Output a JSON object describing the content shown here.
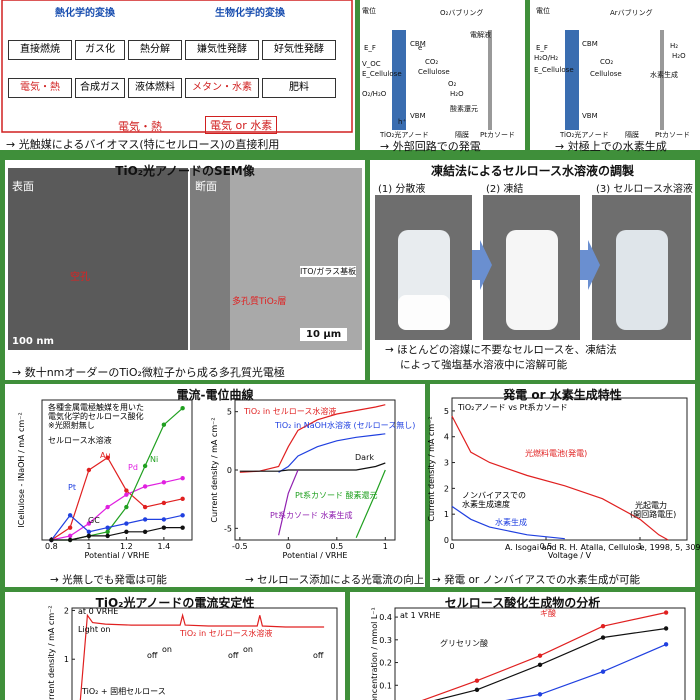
{
  "flow": {
    "left_header": "熱化学的変換",
    "right_header": "生物化学的変換",
    "row1": [
      "直接燃焼",
      "ガス化",
      "熱分解",
      "嫌気性発酵",
      "好気性発酵"
    ],
    "row2": [
      "電気・熱",
      "合成ガス",
      "液体燃料",
      "メタン・水素",
      "肥料"
    ],
    "row3": [
      "電気・熱",
      "電気 or 水素"
    ],
    "caption": "→ 光触媒によるバイオマス(特にセルロース)の直接利用"
  },
  "cell1": {
    "labels": [
      "電位",
      "O₂バブリング",
      "CBM",
      "VBM",
      "E_F",
      "V_OC",
      "E_Cellulose",
      "O₂/H₂O",
      "CO₂",
      "Cellulose",
      "電解液",
      "O₂",
      "H₂O",
      "酸素還元",
      "h⁺",
      "e⁻",
      "TiO₂光アノード",
      "隔膜",
      "Ptカソード"
    ],
    "caption": "→ 外部回路での発電"
  },
  "cell2": {
    "labels": [
      "電位",
      "Arバブリング",
      "CBM",
      "VBM",
      "E_F",
      "H₂O/H₂",
      "E_Cellulose",
      "H₂",
      "H₂O",
      "CO₂",
      "Cellulose",
      "水素生成",
      "TiO₂光アノード",
      "隔膜",
      "Ptカソード"
    ],
    "caption": "→ 対極上での水素生成"
  },
  "sem": {
    "title": "TiO₂光アノードのSEM像",
    "surface": "表面",
    "section": "断面",
    "pore": "空孔",
    "porous": "多孔質TiO₂層",
    "substrate": "ITO/ガラス基板",
    "scale1": "100 nm",
    "scale2": "10 μm",
    "caption": "→ 数十nmオーダーのTiO₂微粒子から成る多孔質光電極"
  },
  "freeze": {
    "title": "凍結法によるセルロース水溶液の調製",
    "steps": [
      "(1) 分散液",
      "(2) 凍結",
      "(3) セルロース水溶液"
    ],
    "caption": [
      "→ ほとんどの溶媒に不要なセルロースを、凍結法",
      "によって強塩基水溶液中に溶解可能"
    ]
  },
  "iv": {
    "title": "電流-電位曲線",
    "captions": [
      "→ 光無しでも発電は可能",
      "→ セルロース添加による光電流の向上"
    ],
    "left": {
      "type": "line",
      "markers": true,
      "annotation": [
        "各種金属電極触媒を用いた",
        "電気化学的セルロース酸化",
        "※光照射無し",
        "セルロース水溶液"
      ],
      "x_label": "Potential / VRHE",
      "y_label": "ICellulose - INaOH / mA cm⁻²",
      "x": [
        0.8,
        0.9,
        1.0,
        1.1,
        1.2,
        1.3,
        1.4,
        1.5
      ],
      "xlim": [
        0.75,
        1.55
      ],
      "xticks": [
        0.8,
        1.0,
        1.2,
        1.4
      ],
      "ylim": [
        0,
        0.34
      ],
      "series": [
        {
          "name": "Au",
          "color": "#e02020",
          "values": [
            0,
            0.03,
            0.17,
            0.2,
            0.12,
            0.08,
            0.09,
            0.1
          ]
        },
        {
          "name": "Pd",
          "color": "#e020e0",
          "values": [
            0,
            0.01,
            0.04,
            0.08,
            0.11,
            0.13,
            0.14,
            0.15
          ]
        },
        {
          "name": "Ni",
          "color": "#20a020",
          "values": [
            0,
            0,
            0.01,
            0.02,
            0.08,
            0.18,
            0.28,
            0.32
          ]
        },
        {
          "name": "Pt",
          "color": "#2040e0",
          "values": [
            0,
            0.06,
            0.02,
            0.03,
            0.04,
            0.05,
            0.05,
            0.06
          ]
        },
        {
          "name": "GC",
          "color": "#111111",
          "values": [
            0,
            0,
            0.01,
            0.01,
            0.02,
            0.02,
            0.03,
            0.03
          ]
        }
      ]
    },
    "right": {
      "type": "line",
      "x_label": "Potential / VRHE",
      "y_label": "Current density / mA cm⁻²",
      "x": [
        -0.5,
        -0.3,
        -0.1,
        0,
        0.1,
        0.3,
        0.5,
        0.7,
        0.9,
        1.0
      ],
      "xlim": [
        -0.55,
        1.1
      ],
      "xticks": [
        -0.5,
        0,
        0.5,
        1
      ],
      "ylim": [
        -6,
        6
      ],
      "yticks": [
        -5,
        0,
        5
      ],
      "series": [
        {
          "name": "TiO₂ in セルロース水溶液",
          "color": "#e02020",
          "values": [
            -0.2,
            -0.1,
            0.3,
            2,
            3.4,
            4.3,
            4.8,
            5.1,
            5.4,
            5.6
          ]
        },
        {
          "name": "TiO₂ in NaOH水溶液 (セルロース無し)",
          "color": "#2040e0",
          "values": [
            null,
            null,
            -0.2,
            0.3,
            1.2,
            2,
            2.5,
            2.8,
            3,
            3.1
          ]
        },
        {
          "name": "Dark",
          "color": "#111111",
          "values": [
            -0.1,
            -0.1,
            -0.1,
            0,
            0,
            0,
            0,
            0,
            0.3,
            0.6
          ]
        },
        {
          "name": "Pt系カソード 酸素還元",
          "color": "#20a020",
          "values": [
            null,
            null,
            null,
            null,
            null,
            null,
            null,
            -5.8,
            -2,
            0
          ]
        },
        {
          "name": "Pt系カソード 水素生成",
          "color": "#9020b0",
          "values": [
            null,
            null,
            -5.6,
            -2,
            0,
            null,
            null,
            null,
            null,
            null
          ]
        }
      ]
    }
  },
  "power": {
    "title": "発電 or 水素生成特性",
    "caption": "→ 発電 or ノンバイアスでの水素生成が可能",
    "citation": "A. Isogai and R. H. Atalla, Cellulose, 1998, 5, 309–319.",
    "chart": {
      "type": "line",
      "annotation": [
        "TiO₂アノード vs Pt系カソード",
        "ノンバイアスでの",
        "水素生成速度",
        "光起電力",
        "(開回路電圧)"
      ],
      "x_label": "Voltage / V",
      "y_label": "Current density / mA cm⁻²",
      "x": [
        0,
        0.1,
        0.2,
        0.4,
        0.6,
        0.8,
        1.0,
        1.1,
        1.15
      ],
      "xlim": [
        0,
        1.25
      ],
      "xticks": [
        0,
        0.5,
        1
      ],
      "ylim": [
        0,
        5.5
      ],
      "yticks": [
        0,
        1,
        2,
        3,
        4,
        5
      ],
      "series": [
        {
          "name": "光燃料電池(発電)",
          "color": "#e02020",
          "values": [
            4.8,
            3.4,
            3,
            2.5,
            2.1,
            1.6,
            0.8,
            0.2,
            0
          ]
        },
        {
          "name": "水素生成",
          "color": "#2040e0",
          "values": [
            1.3,
            0.8,
            0.5,
            0.2,
            0.05,
            null,
            null,
            null,
            null
          ]
        }
      ]
    }
  },
  "stability": {
    "title": "TiO₂光アノードの電流安定性",
    "chart": {
      "type": "line",
      "annotation": [
        "at 0 VRHE",
        "Light on",
        "off",
        "on",
        "off",
        "on",
        "off",
        "TiO₂ + 固相セルロース"
      ],
      "y_label": "Current density / mA cm⁻²",
      "x": [
        0,
        0.3,
        0.5,
        1,
        2,
        3,
        3.9,
        4,
        4.1,
        5,
        6,
        6.9,
        7,
        7.1,
        8,
        9,
        9.5
      ],
      "xlim": [
        -0.3,
        10
      ],
      "ylim": [
        0,
        2.05
      ],
      "yticks": [
        0,
        1,
        2
      ],
      "series": [
        {
          "name": "TiO₂ in セルロース水溶液",
          "color": "#e02020",
          "values": [
            0,
            1.9,
            1.75,
            1.72,
            1.7,
            1.7,
            1.7,
            1.9,
            1.7,
            1.68,
            1.68,
            1.68,
            1.9,
            1.68,
            1.66,
            1.66,
            1.66
          ]
        }
      ]
    }
  },
  "products": {
    "title": "セルロース酸化生成物の分析",
    "chart": {
      "type": "line",
      "markers": true,
      "annotation": [
        "at 1 VRHE"
      ],
      "y_label": "Concentration / mmol L⁻¹",
      "x": [
        0,
        1,
        2,
        3,
        4
      ],
      "xlim": [
        -0.3,
        4.3
      ],
      "ylim": [
        0,
        0.44
      ],
      "yticks": [
        0.1,
        0.2,
        0.3,
        0.4
      ],
      "series": [
        {
          "name": "ギ酸",
          "color": "#e02020",
          "values": [
            0.02,
            0.12,
            0.23,
            0.36,
            0.42
          ]
        },
        {
          "name": "グリセリン酸",
          "color": "#111111",
          "values": [
            0.01,
            0.08,
            0.19,
            0.31,
            0.35
          ]
        },
        {
          "color": "#2040e0",
          "values": [
            0,
            0.01,
            0.06,
            0.16,
            0.28
          ]
        }
      ]
    }
  }
}
